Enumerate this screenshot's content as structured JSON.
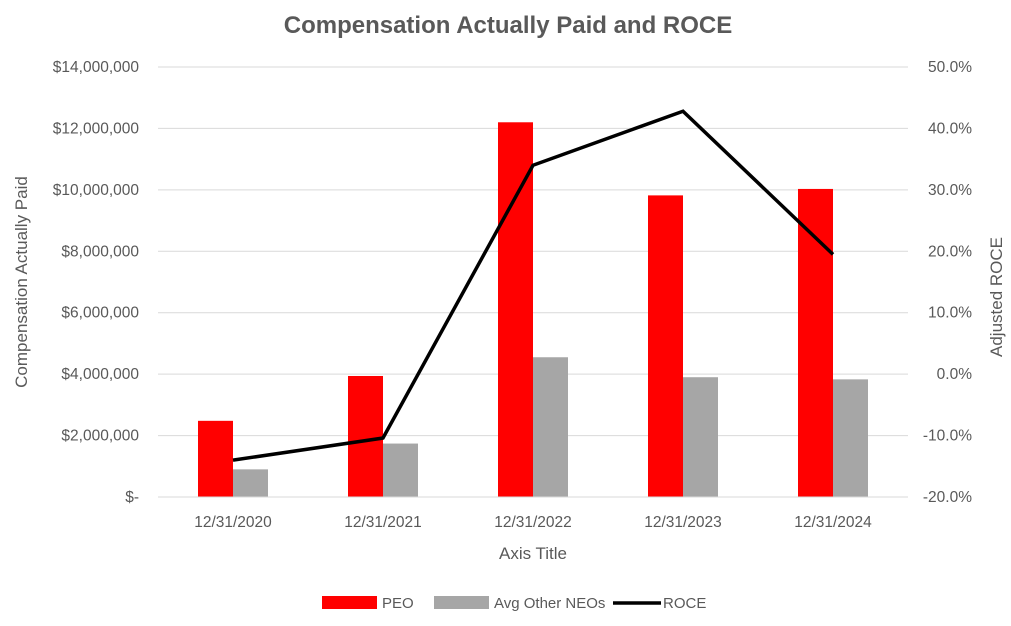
{
  "chart_data": {
    "type": "bar",
    "title": "Compensation Actually Paid and ROCE",
    "xlabel": "Axis Title",
    "ylabel": "Compensation Actually Paid",
    "y2label": "Adjusted ROCE",
    "categories": [
      "12/31/2020",
      "12/31/2021",
      "12/31/2022",
      "12/31/2023",
      "12/31/2024"
    ],
    "ylim": [
      0,
      14000000
    ],
    "y_ticks": [
      0,
      2000000,
      4000000,
      6000000,
      8000000,
      10000000,
      12000000,
      14000000
    ],
    "y_tick_labels": [
      "$-",
      "$2,000,000",
      "$4,000,000",
      "$6,000,000",
      "$8,000,000",
      "$10,000,000",
      "$12,000,000",
      "$14,000,000"
    ],
    "y2lim": [
      -0.2,
      0.5
    ],
    "y2_ticks": [
      -0.2,
      -0.1,
      0.0,
      0.1,
      0.2,
      0.3,
      0.4,
      0.5
    ],
    "y2_tick_labels": [
      "-20.0%",
      "-10.0%",
      "0.0%",
      "10.0%",
      "20.0%",
      "30.0%",
      "40.0%",
      "50.0%"
    ],
    "grid": true,
    "legend_position": "bottom",
    "series": [
      {
        "name": "PEO",
        "kind": "bar",
        "axis": "left",
        "color": "#ff0000",
        "values": [
          2480000,
          3940000,
          12200000,
          9820000,
          10030000
        ]
      },
      {
        "name": "Avg Other NEOs",
        "kind": "bar",
        "axis": "left",
        "color": "#a6a6a6",
        "values": [
          900000,
          1740000,
          4550000,
          3900000,
          3830000
        ]
      },
      {
        "name": "ROCE",
        "kind": "line",
        "axis": "right",
        "color": "#000000",
        "values": [
          -0.14,
          -0.104,
          0.34,
          0.428,
          0.195
        ]
      }
    ]
  }
}
